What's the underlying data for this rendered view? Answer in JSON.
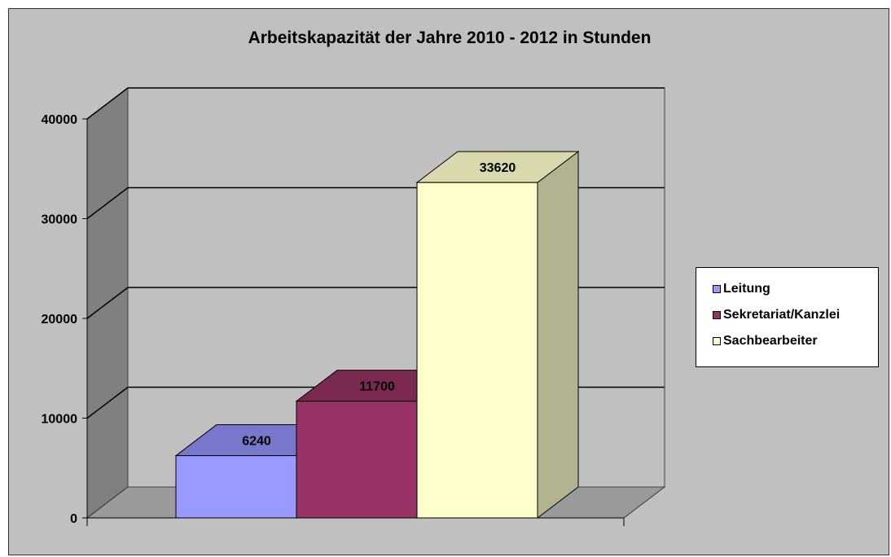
{
  "chart_data": {
    "type": "bar",
    "title": "Arbeitskapazität der Jahre 2010 - 2012 in Stunden",
    "xlabel": "",
    "ylabel": "",
    "ylim": [
      0,
      40000
    ],
    "yticks": [
      0,
      10000,
      20000,
      30000,
      40000
    ],
    "ytick_labels": [
      "0",
      "10000",
      "20000",
      "30000",
      "40000"
    ],
    "grid": true,
    "three_d": true,
    "legend_position": "right",
    "series": [
      {
        "name": "Leitung",
        "values": [
          6240
        ],
        "value_label": "6240",
        "color": "#9999ff",
        "top_color": "#7777cc",
        "side_color": "#5c5c99"
      },
      {
        "name": "Sekretariat/Kanzlei",
        "values": [
          11700
        ],
        "value_label": "11700",
        "color": "#993366",
        "top_color": "#7a2950",
        "side_color": "#5c1f3d"
      },
      {
        "name": "Sachbearbeiter",
        "values": [
          33620
        ],
        "value_label": "33620",
        "color": "#ffffcc",
        "top_color": "#d9d9ad",
        "side_color": "#b3b38f"
      }
    ]
  }
}
